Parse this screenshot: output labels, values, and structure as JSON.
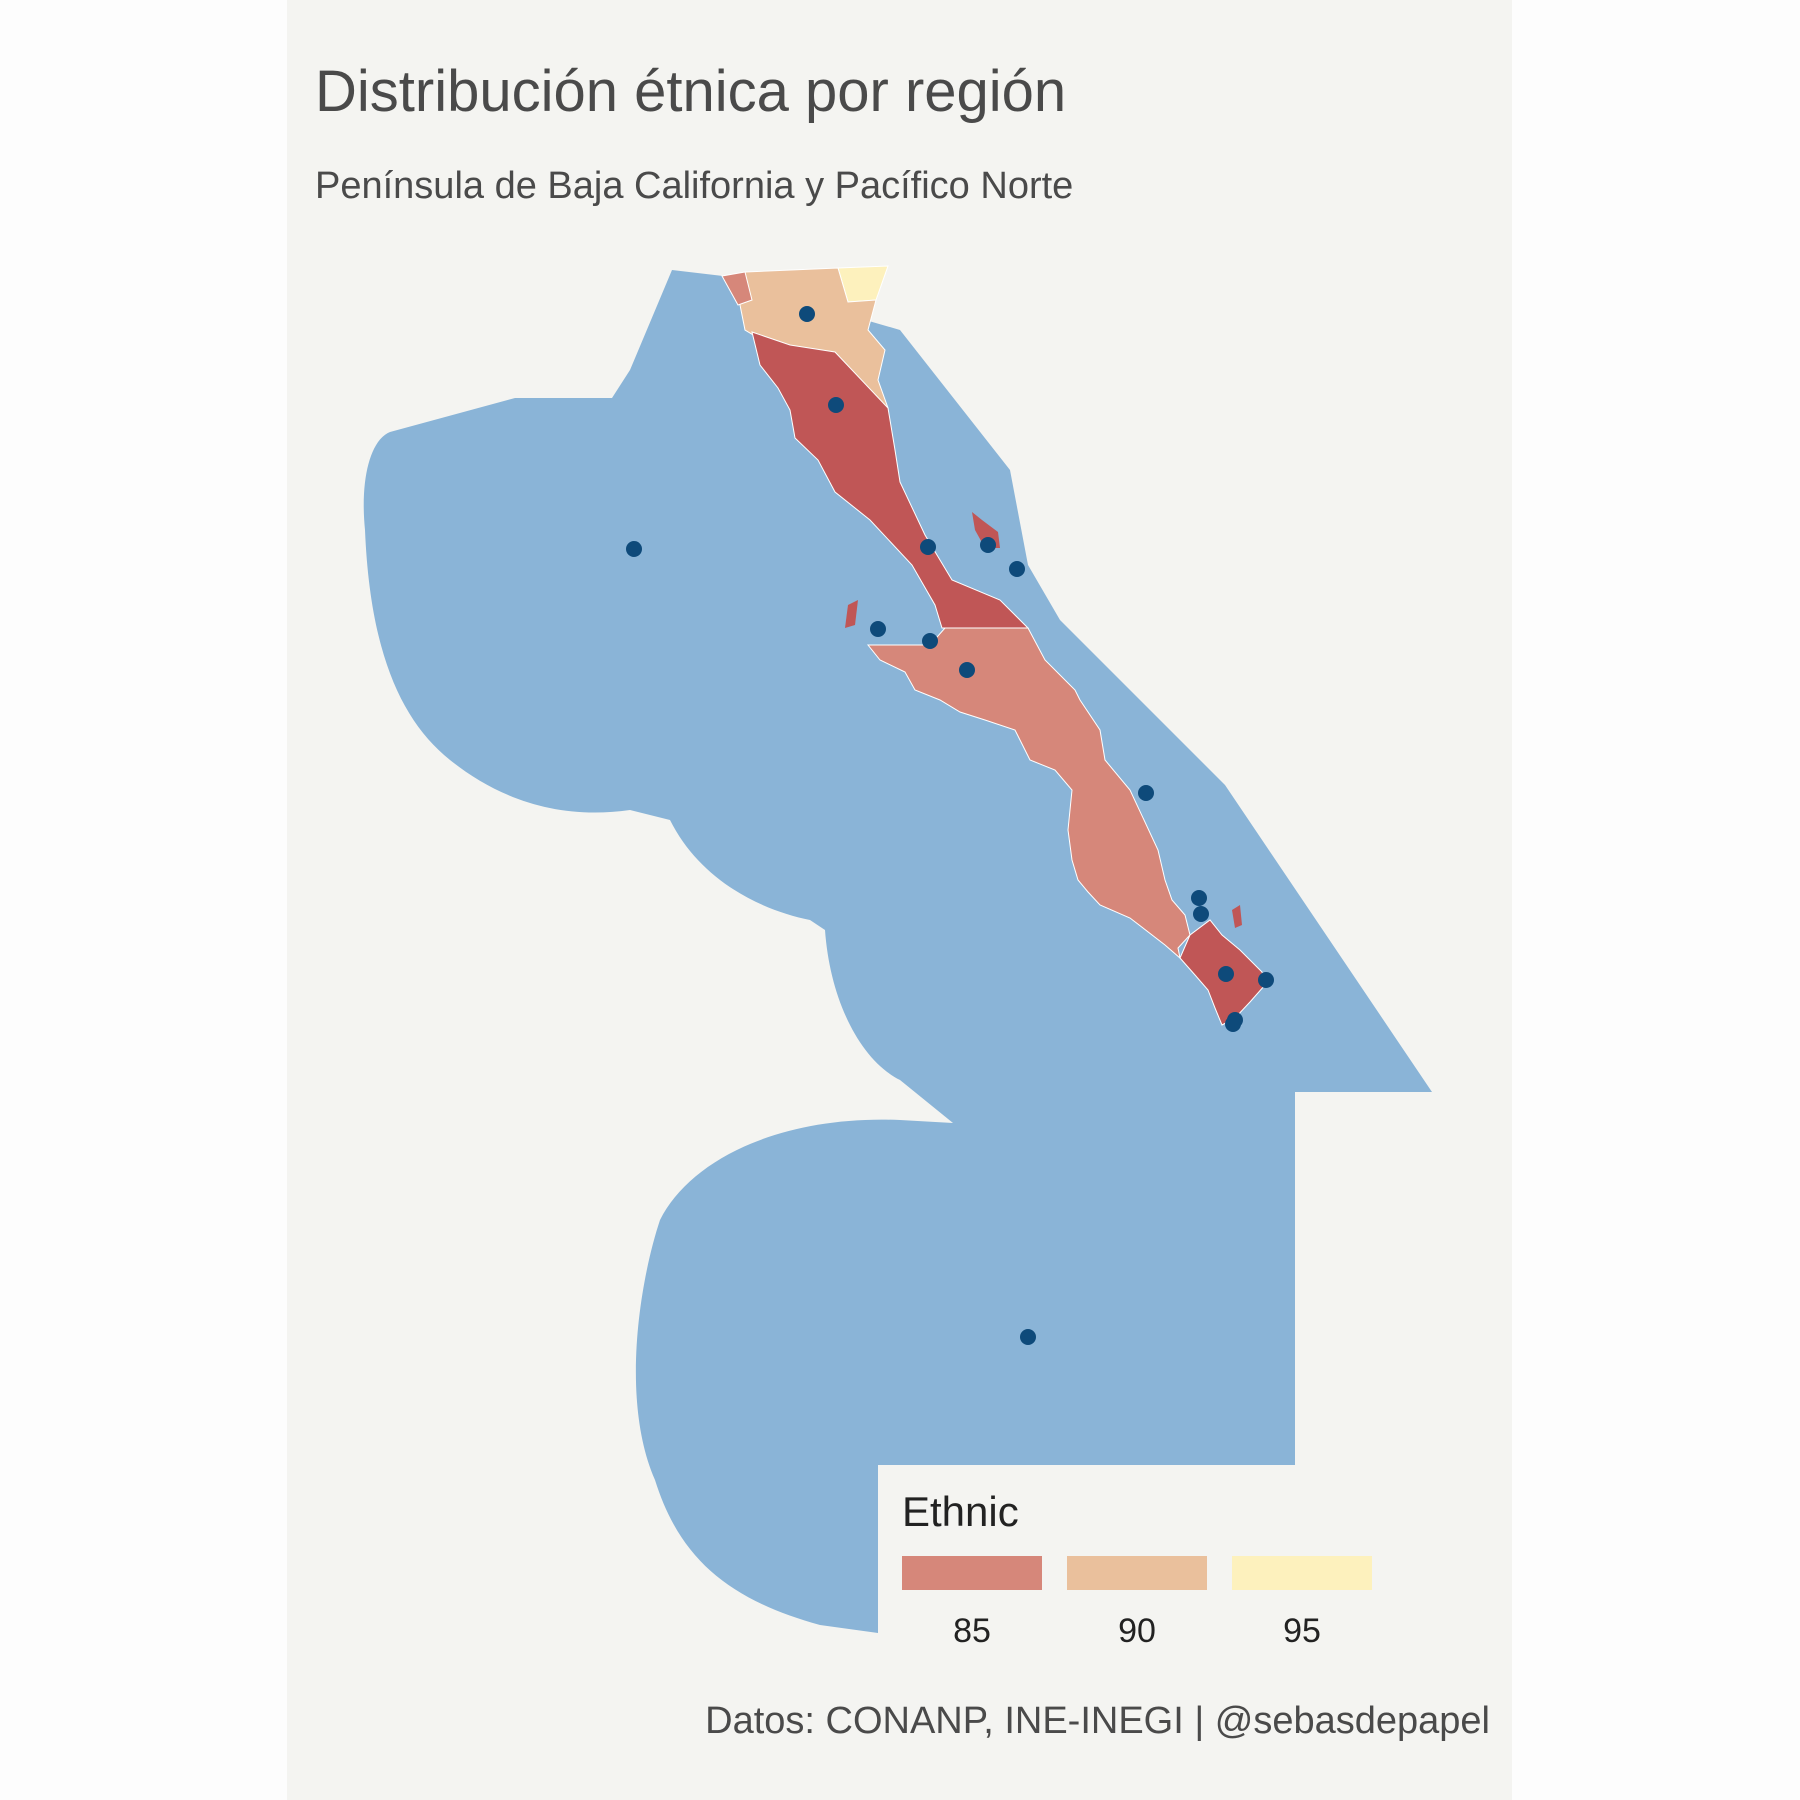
{
  "title": "Distribución étnica por región",
  "subtitle": "Península de Baja California y Pacífico Norte",
  "caption": "Datos: CONANP, INE-INEGI | @sebasdepapel",
  "legend": {
    "title": "Ethnic",
    "items": [
      {
        "label": "85",
        "color": "#d6877a"
      },
      {
        "label": "90",
        "color": "#eac09c"
      },
      {
        "label": "95",
        "color": "#fdf1bd"
      }
    ]
  },
  "colors": {
    "marine_zone": "#8ab4d7",
    "point": "#0e4a7a",
    "region_dark": "#c05656",
    "region_mid": "#d6877a",
    "region_light": "#eac09c",
    "region_pale": "#fdf1bd",
    "panel": "#f4f4f1"
  }
}
